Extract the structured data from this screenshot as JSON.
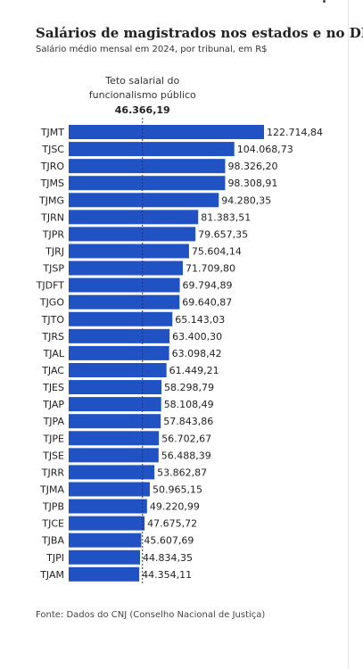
{
  "title": "Salários de magistrados nos estados e no DF",
  "subtitle": "Salário médio mensal em 2024, por tribunal, em R$",
  "source": "Fonte: Dados do CNJ (Conselho Nacional de Justiça)",
  "colors": {
    "bar": "#2152c4",
    "text": "#222222",
    "reference_line": "#333333"
  },
  "chart_data": {
    "type": "bar",
    "orientation": "horizontal",
    "title": "Salários de magistrados nos estados e no DF",
    "subtitle": "Salário médio mensal em 2024, por tribunal, em R$",
    "categories": [
      "TJMT",
      "TJSC",
      "TJRO",
      "TJMS",
      "TJMG",
      "TJRN",
      "TJPR",
      "TJRJ",
      "TJSP",
      "TJDFT",
      "TJGO",
      "TJTO",
      "TJRS",
      "TJAL",
      "TJAC",
      "TJES",
      "TJAP",
      "TJPA",
      "TJPE",
      "TJSE",
      "TJRR",
      "TJMA",
      "TJPB",
      "TJCE",
      "TJBA",
      "TJPI",
      "TJAM"
    ],
    "values": [
      122714.84,
      104068.73,
      98326.2,
      98308.91,
      94280.35,
      81383.51,
      79657.35,
      75604.14,
      71709.8,
      69794.89,
      69640.87,
      65143.03,
      63400.3,
      63098.42,
      61449.21,
      58298.79,
      58108.49,
      57843.86,
      56702.67,
      56488.39,
      53862.87,
      50965.15,
      49220.99,
      47675.72,
      45607.69,
      44834.35,
      44354.11
    ],
    "value_labels": [
      "122.714,84",
      "104.068,73",
      "98.326,20",
      "98.308,91",
      "94.280,35",
      "81.383,51",
      "79.657,35",
      "75.604,14",
      "71.709,80",
      "69.794,89",
      "69.640,87",
      "65.143,03",
      "63.400,30",
      "63.098,42",
      "61.449,21",
      "58.298,79",
      "58.108,49",
      "57.843,86",
      "56.702,67",
      "56.488,39",
      "53.862,87",
      "50.965,15",
      "49.220,99",
      "47.675,72",
      "45.607,69",
      "44.834,35",
      "44.354,11"
    ],
    "xlim": [
      0,
      122714.84
    ],
    "grid": false,
    "reference_line": {
      "value": 46366.19,
      "label_lines": [
        "Teto salarial do",
        "funcionalismo público"
      ],
      "value_label": "46.366,19"
    },
    "series_color": "#2152c4"
  }
}
